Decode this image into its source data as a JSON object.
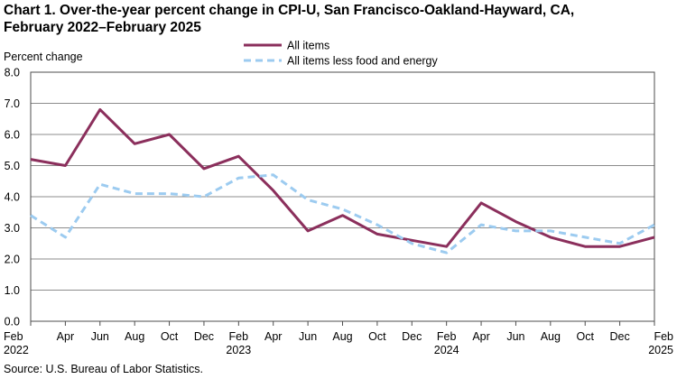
{
  "title_line1": "Chart 1. Over-the-year percent change in CPI-U, San Francisco-Oakland-Hayward, CA,",
  "title_line2": "February 2022–February 2025",
  "source": "Source: U.S. Bureau of Labor Statistics.",
  "chart_data": {
    "type": "line",
    "title": "Over-the-year percent change in CPI-U, San Francisco-Oakland-Hayward, CA, February 2022–February 2025",
    "ylabel": "Percent change",
    "xlabel": "",
    "ylim": [
      0,
      8
    ],
    "yticks": [
      "0.0",
      "1.0",
      "2.0",
      "3.0",
      "4.0",
      "5.0",
      "6.0",
      "7.0",
      "8.0"
    ],
    "grid": true,
    "legend_position": "top-center",
    "x": [
      "Feb 2022",
      "Apr 2022",
      "Jun 2022",
      "Aug 2022",
      "Oct 2022",
      "Dec 2022",
      "Feb 2023",
      "Apr 2023",
      "Jun 2023",
      "Aug 2023",
      "Oct 2023",
      "Dec 2023",
      "Feb 2024",
      "Apr 2024",
      "Jun 2024",
      "Aug 2024",
      "Oct 2024",
      "Dec 2024",
      "Feb 2025"
    ],
    "tick_labels": [
      {
        "month": "Feb",
        "year": "2022"
      },
      {
        "month": "Apr",
        "year": ""
      },
      {
        "month": "Jun",
        "year": ""
      },
      {
        "month": "Aug",
        "year": ""
      },
      {
        "month": "Oct",
        "year": ""
      },
      {
        "month": "Dec",
        "year": ""
      },
      {
        "month": "Feb",
        "year": "2023"
      },
      {
        "month": "Apr",
        "year": ""
      },
      {
        "month": "Jun",
        "year": ""
      },
      {
        "month": "Aug",
        "year": ""
      },
      {
        "month": "Oct",
        "year": ""
      },
      {
        "month": "Dec",
        "year": ""
      },
      {
        "month": "Feb",
        "year": "2024"
      },
      {
        "month": "Apr",
        "year": ""
      },
      {
        "month": "Jun",
        "year": ""
      },
      {
        "month": "Aug",
        "year": ""
      },
      {
        "month": "Oct",
        "year": ""
      },
      {
        "month": "Dec",
        "year": ""
      },
      {
        "month": "Feb",
        "year": "2025"
      }
    ],
    "series": [
      {
        "name": "All items",
        "color": "#8b2f5c",
        "style": "solid",
        "values": [
          5.2,
          5.0,
          6.8,
          5.7,
          6.0,
          4.9,
          5.3,
          4.2,
          2.9,
          3.4,
          2.8,
          2.6,
          2.4,
          3.8,
          3.2,
          2.7,
          2.4,
          2.4,
          2.7
        ]
      },
      {
        "name": "All items less food and energy",
        "color": "#9ccbf0",
        "style": "dashed",
        "values": [
          3.4,
          2.7,
          4.4,
          4.1,
          4.1,
          4.0,
          4.6,
          4.7,
          3.9,
          3.6,
          3.1,
          2.5,
          2.2,
          3.1,
          2.9,
          2.9,
          2.7,
          2.5,
          3.1
        ]
      }
    ]
  }
}
